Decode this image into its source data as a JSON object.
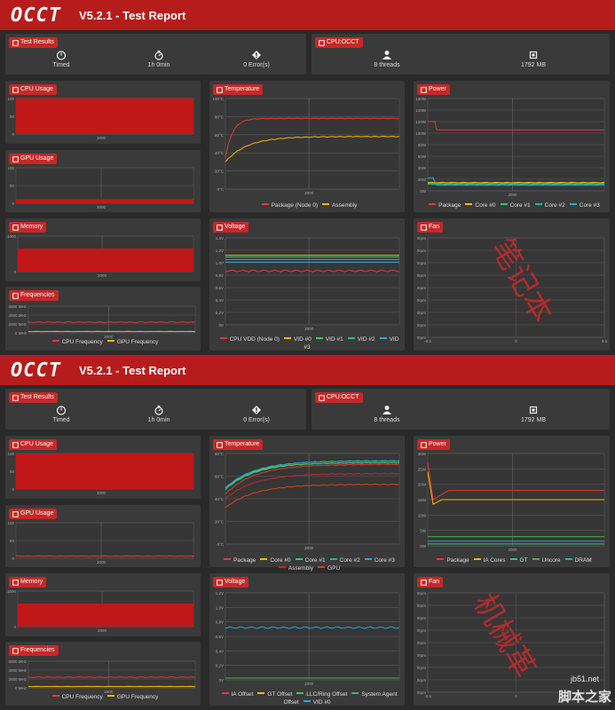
{
  "reports": [
    {
      "brand": "OCCT",
      "title": "V5.2.1 - Test Report",
      "results": {
        "label": "Test Results",
        "timed": "Timed",
        "duration": "1h 0min",
        "errors": "0 Error(s)"
      },
      "cpu": {
        "label": "CPU:OCCT",
        "threads": "8 threads",
        "memory": "1792 MB"
      },
      "cpu_usage": {
        "label": "CPU Usage",
        "yticks": [
          "100",
          "50",
          "0"
        ],
        "xtick": "2000"
      },
      "gpu_usage": {
        "label": "GPU Usage",
        "yticks": [
          "100",
          "50",
          "0"
        ],
        "xtick": "2000"
      },
      "memory": {
        "label": "Memory",
        "yticks": [
          "1000",
          "0"
        ],
        "xtick": "2000"
      },
      "frequencies": {
        "label": "Frequencies",
        "yticks": [
          "6000 MHz",
          "4000 MHz",
          "2000 MHz",
          "0 MHz"
        ],
        "xtick": "2000",
        "legend": [
          "CPU Frequency",
          "GPU Frequency"
        ]
      },
      "temperature": {
        "label": "Temperature",
        "yticks": [
          "100°C",
          "80°C",
          "60°C",
          "40°C",
          "20°C",
          "0°C"
        ],
        "xtick": "2000",
        "legend": [
          "Package (Node 0)",
          "Assembly"
        ]
      },
      "voltage": {
        "label": "Voltage",
        "yticks": [
          "1.4V",
          "1.2V",
          "1.0V",
          "0.8V",
          "0.6V",
          "0.4V",
          "0.2V",
          "0V"
        ],
        "xtick": "2000",
        "legend": [
          "CPU VDD (Node 0)",
          "VID #0",
          "VID #1",
          "VID #2",
          "VID #3"
        ]
      },
      "power": {
        "label": "Power",
        "yticks": [
          "160W",
          "140W",
          "120W",
          "100W",
          "80W",
          "60W",
          "40W",
          "20W",
          "0W"
        ],
        "xtick": "2000",
        "legend": [
          "Package",
          "Core #0",
          "Core #1",
          "Core #2",
          "Core #3"
        ]
      },
      "fan": {
        "label": "Fan",
        "yticks": [
          "0rpm",
          "0rpm",
          "0rpm",
          "0rpm",
          "0rpm",
          "0rpm",
          "0rpm",
          "0rpm",
          "0rpm"
        ],
        "xticks": [
          "-0.5",
          "0",
          "0.5"
        ]
      }
    },
    {
      "brand": "OCCT",
      "title": "V5.2.1 - Test Report",
      "results": {
        "label": "Test Results",
        "timed": "Timed",
        "duration": "1h 0min",
        "errors": "0 Error(s)"
      },
      "cpu": {
        "label": "CPU:OCCT",
        "threads": "8 threads",
        "memory": "1792 MB"
      },
      "cpu_usage": {
        "label": "CPU Usage",
        "yticks": [
          "100",
          "50",
          "0"
        ],
        "xtick": "2000"
      },
      "gpu_usage": {
        "label": "GPU Usage",
        "yticks": [
          "100",
          "50",
          "0"
        ],
        "xtick": "2000"
      },
      "memory": {
        "label": "Memory",
        "yticks": [
          "1000",
          "0"
        ],
        "xtick": "2000"
      },
      "frequencies": {
        "label": "Frequencies",
        "yticks": [
          "6000 MHz",
          "4000 MHz",
          "2000 MHz",
          "0 MHz"
        ],
        "xtick": "2000",
        "legend": [
          "CPU Frequency",
          "GPU Frequency"
        ]
      },
      "temperature": {
        "label": "Temperature",
        "yticks": [
          "80°C",
          "60°C",
          "40°C",
          "20°C",
          "0°C"
        ],
        "xtick": "2000",
        "legend": [
          "Package",
          "Core #0",
          "Core #1",
          "Core #2",
          "Core #3",
          "Assembly",
          "GPU"
        ]
      },
      "voltage": {
        "label": "Voltage",
        "yticks": [
          "1.2V",
          "1.0V",
          "0.8V",
          "0.6V",
          "0.4V",
          "0.2V",
          "0V"
        ],
        "xtick": "2000",
        "legend": [
          "IA Offset",
          "GT Offset",
          "LLC/Ring Offset",
          "System Agent Offset",
          "VID #0"
        ]
      },
      "power": {
        "label": "Power",
        "yticks": [
          "30W",
          "25W",
          "20W",
          "15W",
          "10W",
          "5W",
          "0W"
        ],
        "xtick": "2000",
        "legend": [
          "Package",
          "IA Cores",
          "GT",
          "Uncore",
          "DRAM"
        ]
      },
      "fan": {
        "label": "Fan",
        "yticks": [
          "0rpm",
          "0rpm",
          "0rpm",
          "0rpm",
          "0rpm",
          "0rpm",
          "0rpm",
          "0rpm",
          "0rpm"
        ],
        "xticks": [
          "-0.5",
          "0",
          "0.5"
        ]
      }
    }
  ],
  "watermarks": [
    "笔记本",
    "机械革"
  ],
  "site": {
    "line1": "jb51.net",
    "line2": "脚本之家"
  },
  "colors": {
    "red": "#e53935",
    "orange": "#f5b800",
    "green": "#2ecc71",
    "teal": "#1abc9c",
    "cyan": "#2aa8d8",
    "header": "#b71c1c"
  }
}
